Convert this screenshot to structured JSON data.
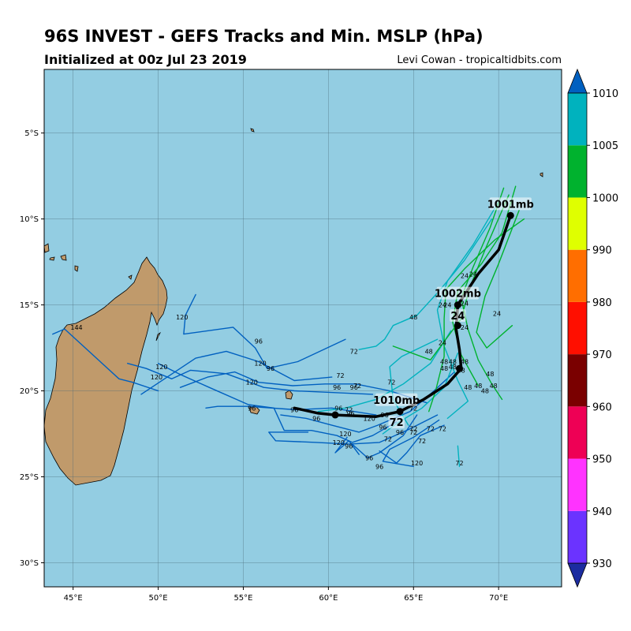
{
  "header": {
    "title": "96S INVEST - GEFS Tracks and Min. MSLP (hPa)",
    "subtitle": "Initialized at 00z Jul 23 2019",
    "credit": "Levi Cowan - tropicaltidbits.com"
  },
  "map": {
    "lon_range": [
      43.3,
      73.7
    ],
    "lat_range": [
      -31.4,
      -1.3
    ],
    "lon_ticks": [
      45,
      50,
      55,
      60,
      65,
      70
    ],
    "lon_tick_labels": [
      "45°E",
      "50°E",
      "55°E",
      "60°E",
      "65°E",
      "70°E"
    ],
    "lat_ticks": [
      -5,
      -10,
      -15,
      -20,
      -25,
      -30
    ],
    "lat_tick_labels": [
      "5°S",
      "10°S",
      "15°S",
      "20°S",
      "25°S",
      "30°S"
    ],
    "ocean_color": "#93cde2",
    "land_color": "#c09a6b",
    "grid": true
  },
  "colorbar": {
    "levels": [
      930,
      940,
      950,
      960,
      970,
      980,
      990,
      1000,
      1005,
      1010
    ],
    "labels": [
      "930",
      "940",
      "950",
      "960",
      "970",
      "980",
      "990",
      "1000",
      "1005",
      "1010"
    ],
    "colors": [
      "#6b33ff",
      "#ff33ff",
      "#ee0055",
      "#7a0000",
      "#ff0f00",
      "#ff6e00",
      "#dfff00",
      "#00b22e",
      "#00b2be"
    ],
    "under_color": "#1c2ca0",
    "over_color": "#0060c0"
  },
  "mean_track": {
    "points": [
      [
        70.7,
        -9.8
      ],
      [
        70.0,
        -11.8
      ],
      [
        68.8,
        -13.2
      ],
      [
        67.6,
        -15.0
      ],
      [
        67.5,
        -16.4
      ],
      [
        67.7,
        -17.6
      ],
      [
        67.8,
        -18.7
      ],
      [
        67.0,
        -19.6
      ],
      [
        65.6,
        -20.5
      ],
      [
        64.2,
        -21.2
      ],
      [
        62.8,
        -21.5
      ],
      [
        60.4,
        -21.4
      ],
      [
        59.4,
        -21.3
      ],
      [
        58.0,
        -21.0
      ]
    ],
    "dot_points": [
      [
        70.7,
        -9.8
      ],
      [
        67.6,
        -15.0
      ],
      [
        67.6,
        -16.2
      ],
      [
        67.7,
        -18.7
      ],
      [
        64.2,
        -21.2
      ],
      [
        60.4,
        -21.4
      ]
    ],
    "labels": [
      {
        "text": "1001mb",
        "lon": 70.7,
        "lat": -9.3
      },
      {
        "text": "1002mb",
        "lon": 67.6,
        "lat": -14.5
      },
      {
        "text": "24",
        "lon": 67.6,
        "lat": -15.8
      },
      {
        "text": "1010mb",
        "lon": 64.0,
        "lat": -20.7
      },
      {
        "text": "72",
        "lon": 64.0,
        "lat": -22.0
      }
    ]
  },
  "member_tracks": [
    {
      "category": "1000",
      "points": [
        [
          70.3,
          -8.2
        ],
        [
          69.5,
          -10.5
        ],
        [
          68.5,
          -12.8
        ],
        [
          67.8,
          -14.6
        ],
        [
          68.2,
          -16.4
        ],
        [
          68.8,
          -18.2
        ],
        [
          69.6,
          -19.6
        ],
        [
          70.2,
          -20.5
        ]
      ]
    },
    {
      "category": "1000",
      "points": [
        [
          71.0,
          -8.1
        ],
        [
          70.2,
          -10.8
        ],
        [
          69.0,
          -12.6
        ],
        [
          67.6,
          -14.2
        ],
        [
          67.3,
          -16.0
        ],
        [
          67.8,
          -17.9
        ],
        [
          68.8,
          -19.7
        ]
      ]
    },
    {
      "category": "1000",
      "points": [
        [
          71.5,
          -10.0
        ],
        [
          69.8,
          -11.2
        ],
        [
          68.0,
          -12.9
        ],
        [
          66.9,
          -14.1
        ],
        [
          66.8,
          -15.8
        ],
        [
          66.8,
          -18.0
        ],
        [
          66.3,
          -20.0
        ],
        [
          65.9,
          -21.2
        ]
      ]
    },
    {
      "category": "1000",
      "points": [
        [
          71.2,
          -9.5
        ],
        [
          70.0,
          -12.6
        ],
        [
          69.2,
          -14.5
        ],
        [
          68.7,
          -16.6
        ],
        [
          69.3,
          -17.5
        ],
        [
          70.8,
          -16.2
        ]
      ]
    },
    {
      "category": "1000",
      "points": [
        [
          70.6,
          -8.6
        ],
        [
          69.2,
          -11.8
        ],
        [
          68.3,
          -14.0
        ],
        [
          67.8,
          -15.8
        ],
        [
          66.0,
          -18.2
        ],
        [
          63.8,
          -17.4
        ]
      ]
    },
    {
      "category": "1005",
      "points": [
        [
          70.0,
          -9.0
        ],
        [
          68.5,
          -11.5
        ],
        [
          67.0,
          -13.6
        ],
        [
          66.4,
          -15.3
        ],
        [
          66.8,
          -17.4
        ],
        [
          67.6,
          -19.4
        ],
        [
          68.2,
          -20.6
        ],
        [
          67.0,
          -21.6
        ]
      ]
    },
    {
      "category": "1005",
      "points": [
        [
          69.6,
          -10.0
        ],
        [
          68.0,
          -12.4
        ],
        [
          66.5,
          -14.2
        ],
        [
          65.2,
          -15.6
        ],
        [
          63.8,
          -16.2
        ],
        [
          63.3,
          -17.0
        ],
        [
          62.8,
          -17.4
        ],
        [
          61.8,
          -17.6
        ]
      ]
    },
    {
      "category": "1005",
      "points": [
        [
          67.2,
          -16.5
        ],
        [
          66.0,
          -18.4
        ],
        [
          64.4,
          -19.6
        ],
        [
          62.8,
          -20.5
        ],
        [
          61.0,
          -21.0
        ],
        [
          59.4,
          -21.2
        ]
      ]
    },
    {
      "category": "1005",
      "points": [
        [
          67.6,
          -17.8
        ],
        [
          66.8,
          -19.8
        ],
        [
          65.5,
          -21.0
        ],
        [
          64.0,
          -21.9
        ],
        [
          63.2,
          -22.5
        ]
      ]
    },
    {
      "category": "1005",
      "points": [
        [
          66.4,
          -17.0
        ],
        [
          64.3,
          -18.0
        ],
        [
          63.6,
          -18.6
        ],
        [
          63.8,
          -20.5
        ],
        [
          64.7,
          -22.0
        ]
      ]
    },
    {
      "category": "1005",
      "points": [
        [
          67.6,
          -23.2
        ],
        [
          67.7,
          -24.4
        ]
      ]
    },
    {
      "category": "over",
      "points": [
        [
          67.4,
          -18.9
        ],
        [
          66.2,
          -20.0
        ],
        [
          64.8,
          -21.2
        ],
        [
          62.9,
          -22.0
        ],
        [
          61.8,
          -22.4
        ],
        [
          60.2,
          -22.0
        ],
        [
          58.7,
          -21.6
        ],
        [
          57.2,
          -21.4
        ]
      ]
    },
    {
      "category": "over",
      "points": [
        [
          66.4,
          -21.4
        ],
        [
          64.6,
          -22.3
        ],
        [
          63.0,
          -23.0
        ],
        [
          61.2,
          -23.1
        ],
        [
          59.3,
          -23.0
        ],
        [
          56.9,
          -22.9
        ],
        [
          56.5,
          -22.4
        ],
        [
          58.8,
          -22.4
        ]
      ]
    },
    {
      "category": "over",
      "points": [
        [
          65.8,
          -20.7
        ],
        [
          63.6,
          -20.0
        ],
        [
          61.6,
          -19.6
        ],
        [
          59.8,
          -19.6
        ],
        [
          57.9,
          -19.7
        ],
        [
          55.9,
          -19.5
        ],
        [
          54.5,
          -18.9
        ],
        [
          52.9,
          -19.2
        ],
        [
          51.3,
          -19.8
        ]
      ]
    },
    {
      "category": "over",
      "points": [
        [
          61.0,
          -17.0
        ],
        [
          58.2,
          -18.3
        ],
        [
          56.4,
          -18.7
        ],
        [
          55.7,
          -17.5
        ],
        [
          54.4,
          -16.3
        ],
        [
          51.5,
          -16.7
        ],
        [
          51.6,
          -15.6
        ],
        [
          52.2,
          -14.4
        ]
      ]
    },
    {
      "category": "over",
      "points": [
        [
          62.6,
          -20.2
        ],
        [
          60.3,
          -20.1
        ],
        [
          58.0,
          -20.0
        ],
        [
          56.2,
          -19.8
        ],
        [
          54.0,
          -19.0
        ],
        [
          51.9,
          -18.8
        ],
        [
          50.8,
          -19.3
        ],
        [
          49.3,
          -18.7
        ],
        [
          48.2,
          -18.4
        ]
      ]
    },
    {
      "category": "over",
      "points": [
        [
          64.0,
          -21.8
        ],
        [
          62.6,
          -22.6
        ],
        [
          61.4,
          -23.0
        ],
        [
          60.5,
          -22.6
        ],
        [
          59.0,
          -22.3
        ],
        [
          57.4,
          -22.3
        ],
        [
          56.8,
          -21.0
        ],
        [
          55.3,
          -20.8
        ],
        [
          53.0,
          -19.8
        ],
        [
          51.2,
          -19.0
        ],
        [
          50.0,
          -18.4
        ]
      ]
    },
    {
      "category": "over",
      "points": [
        [
          65.2,
          -21.4
        ],
        [
          64.4,
          -22.6
        ],
        [
          63.0,
          -23.6
        ],
        [
          62.3,
          -23.9
        ],
        [
          61.4,
          -23.1
        ]
      ]
    },
    {
      "category": "over",
      "points": [
        [
          66.8,
          -22.0
        ],
        [
          65.4,
          -22.6
        ],
        [
          64.6,
          -23.6
        ],
        [
          64.0,
          -24.2
        ],
        [
          63.0,
          -23.5
        ]
      ]
    },
    {
      "category": "over",
      "points": [
        [
          66.5,
          -21.7
        ],
        [
          65.0,
          -22.7
        ],
        [
          63.6,
          -23.4
        ],
        [
          63.2,
          -24.1
        ],
        [
          65.0,
          -24.4
        ]
      ]
    },
    {
      "category": "over",
      "points": [
        [
          61.1,
          -22.7
        ],
        [
          60.4,
          -23.6
        ],
        [
          61.2,
          -22.9
        ],
        [
          61.8,
          -23.7
        ]
      ]
    },
    {
      "category": "over",
      "points": [
        [
          60.2,
          -19.2
        ],
        [
          58.0,
          -19.4
        ],
        [
          55.9,
          -18.3
        ],
        [
          54.0,
          -17.7
        ],
        [
          52.2,
          -18.1
        ],
        [
          49.0,
          -20.2
        ]
      ]
    },
    {
      "category": "over",
      "points": [
        [
          50.0,
          -20.0
        ],
        [
          48.5,
          -19.5
        ],
        [
          47.7,
          -19.3
        ],
        [
          44.5,
          -16.4
        ],
        [
          43.8,
          -16.7
        ]
      ]
    },
    {
      "category": "over",
      "points": [
        [
          62.8,
          -21.4
        ],
        [
          60.2,
          -21.0
        ],
        [
          58.1,
          -21.1
        ],
        [
          55.3,
          -20.9
        ],
        [
          53.5,
          -20.9
        ],
        [
          52.8,
          -21.0
        ]
      ]
    }
  ],
  "member_labels": [
    {
      "text": "24",
      "lon": 68.0,
      "lat": -13.3
    },
    {
      "text": "24",
      "lon": 68.5,
      "lat": -13.2
    },
    {
      "text": "24",
      "lon": 66.7,
      "lat": -15.0
    },
    {
      "text": "24",
      "lon": 67.0,
      "lat": -15.0
    },
    {
      "text": "24",
      "lon": 68.0,
      "lat": -14.9
    },
    {
      "text": "24",
      "lon": 68.0,
      "lat": -16.3
    },
    {
      "text": "24",
      "lon": 66.7,
      "lat": -17.2
    },
    {
      "text": "24",
      "lon": 69.9,
      "lat": -15.5
    },
    {
      "text": "48",
      "lon": 65.0,
      "lat": -15.7
    },
    {
      "text": "48",
      "lon": 65.9,
      "lat": -17.7
    },
    {
      "text": "48",
      "lon": 66.8,
      "lat": -18.3
    },
    {
      "text": "48",
      "lon": 67.3,
      "lat": -18.3
    },
    {
      "text": "48",
      "lon": 68.0,
      "lat": -18.3
    },
    {
      "text": "48",
      "lon": 66.8,
      "lat": -18.7
    },
    {
      "text": "48",
      "lon": 67.3,
      "lat": -18.6
    },
    {
      "text": "48",
      "lon": 67.8,
      "lat": -18.8
    },
    {
      "text": "48",
      "lon": 69.5,
      "lat": -19.0
    },
    {
      "text": "48",
      "lon": 68.8,
      "lat": -19.7
    },
    {
      "text": "48",
      "lon": 68.2,
      "lat": -19.8
    },
    {
      "text": "48",
      "lon": 69.2,
      "lat": -20.0
    },
    {
      "text": "48",
      "lon": 69.7,
      "lat": -19.7
    },
    {
      "text": "72",
      "lon": 61.5,
      "lat": -17.7
    },
    {
      "text": "72",
      "lon": 60.7,
      "lat": -19.1
    },
    {
      "text": "72",
      "lon": 61.7,
      "lat": -19.7
    },
    {
      "text": "72",
      "lon": 63.7,
      "lat": -19.5
    },
    {
      "text": "72",
      "lon": 61.2,
      "lat": -21.1
    },
    {
      "text": "72",
      "lon": 65.0,
      "lat": -21.0
    },
    {
      "text": "72",
      "lon": 65.0,
      "lat": -22.2
    },
    {
      "text": "72",
      "lon": 65.0,
      "lat": -22.4
    },
    {
      "text": "72",
      "lon": 66.0,
      "lat": -22.2
    },
    {
      "text": "72",
      "lon": 66.7,
      "lat": -22.2
    },
    {
      "text": "72",
      "lon": 65.5,
      "lat": -22.9
    },
    {
      "text": "72",
      "lon": 63.5,
      "lat": -22.8
    },
    {
      "text": "72",
      "lon": 67.7,
      "lat": -24.2
    },
    {
      "text": "96",
      "lon": 55.9,
      "lat": -17.1
    },
    {
      "text": "96",
      "lon": 56.6,
      "lat": -18.7
    },
    {
      "text": "96",
      "lon": 60.5,
      "lat": -19.8
    },
    {
      "text": "96",
      "lon": 61.5,
      "lat": -19.8
    },
    {
      "text": "96",
      "lon": 55.5,
      "lat": -21.0
    },
    {
      "text": "96",
      "lon": 58.0,
      "lat": -21.1
    },
    {
      "text": "96",
      "lon": 59.3,
      "lat": -21.6
    },
    {
      "text": "96",
      "lon": 60.6,
      "lat": -21.0
    },
    {
      "text": "96",
      "lon": 61.3,
      "lat": -21.3
    },
    {
      "text": "96",
      "lon": 63.3,
      "lat": -21.4
    },
    {
      "text": "96",
      "lon": 63.2,
      "lat": -22.1
    },
    {
      "text": "96",
      "lon": 64.2,
      "lat": -22.4
    },
    {
      "text": "96",
      "lon": 61.2,
      "lat": -23.2
    },
    {
      "text": "96",
      "lon": 62.4,
      "lat": -23.9
    },
    {
      "text": "96",
      "lon": 63.0,
      "lat": -24.4
    },
    {
      "text": "120",
      "lon": 51.4,
      "lat": -15.7
    },
    {
      "text": "120",
      "lon": 50.2,
      "lat": -18.6
    },
    {
      "text": "120",
      "lon": 49.9,
      "lat": -19.2
    },
    {
      "text": "120",
      "lon": 55.5,
      "lat": -19.5
    },
    {
      "text": "120",
      "lon": 56.0,
      "lat": -18.4
    },
    {
      "text": "120",
      "lon": 62.4,
      "lat": -21.6
    },
    {
      "text": "120",
      "lon": 61.0,
      "lat": -22.5
    },
    {
      "text": "120",
      "lon": 60.6,
      "lat": -23.0
    },
    {
      "text": "120",
      "lon": 65.2,
      "lat": -24.2
    },
    {
      "text": "144",
      "lon": 45.2,
      "lat": -16.3
    }
  ]
}
